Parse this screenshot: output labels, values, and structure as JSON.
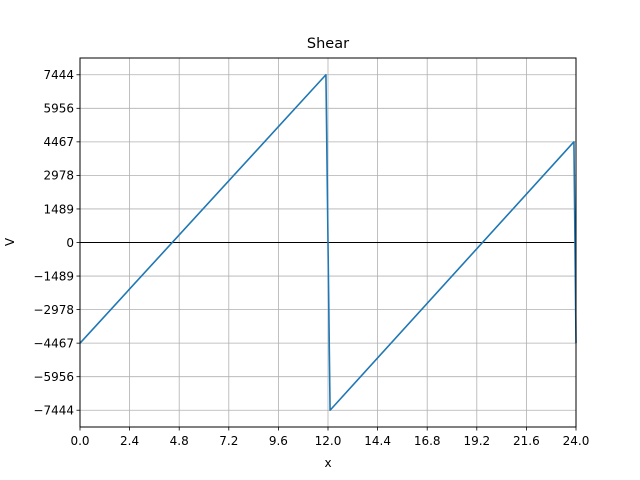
{
  "chart_data": {
    "type": "line",
    "title": "Shear",
    "xlabel": "x",
    "ylabel": "V",
    "xlim": [
      0.0,
      24.0
    ],
    "ylim": [
      -8188.4,
      8188.4
    ],
    "grid": true,
    "x_ticks": [
      0.0,
      2.4,
      4.8,
      7.2,
      9.6,
      12.0,
      14.4,
      16.8,
      19.2,
      21.6,
      24.0
    ],
    "x_tick_labels": [
      "0.0",
      "2.4",
      "4.8",
      "7.2",
      "9.6",
      "12.0",
      "14.4",
      "16.8",
      "19.2",
      "21.6",
      "24.0"
    ],
    "y_ticks": [
      7444,
      5956,
      4467,
      2978,
      1489,
      0,
      -1489,
      -2978,
      -4467,
      -5956,
      -7444
    ],
    "y_tick_labels": [
      "7444",
      "5956",
      "4467",
      "2978",
      "1489",
      "0",
      "−1489",
      "−2978",
      "−4467",
      "−5956",
      "−7444"
    ],
    "zero_line": true,
    "series": [
      {
        "color": "#1f77b4",
        "x": [
          0.0,
          11.9,
          12.1,
          23.9,
          24.0
        ],
        "y": [
          -4467,
          7444,
          -7444,
          4467,
          -4467
        ]
      }
    ]
  }
}
